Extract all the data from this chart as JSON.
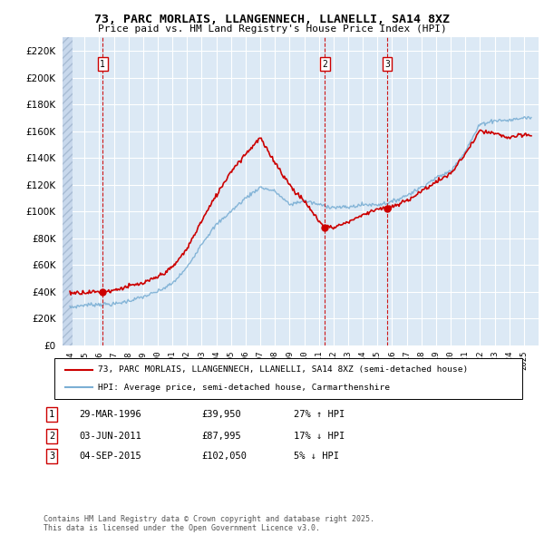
{
  "title": "73, PARC MORLAIS, LLANGENNECH, LLANELLI, SA14 8XZ",
  "subtitle": "Price paid vs. HM Land Registry's House Price Index (HPI)",
  "ylim": [
    0,
    230000
  ],
  "yticks": [
    0,
    20000,
    40000,
    60000,
    80000,
    100000,
    120000,
    140000,
    160000,
    180000,
    200000,
    220000
  ],
  "plot_bg_color": "#dce9f5",
  "sale_markers": [
    {
      "date_num": 1996.24,
      "price": 39950,
      "label": "1"
    },
    {
      "date_num": 2011.42,
      "price": 87995,
      "label": "2"
    },
    {
      "date_num": 2015.67,
      "price": 102050,
      "label": "3"
    }
  ],
  "vline_color": "#cc0000",
  "legend_entry1": "73, PARC MORLAIS, LLANGENNECH, LLANELLI, SA14 8XZ (semi-detached house)",
  "legend_entry2": "HPI: Average price, semi-detached house, Carmarthenshire",
  "table_rows": [
    {
      "num": "1",
      "date": "29-MAR-1996",
      "price": "£39,950",
      "pct": "27% ↑ HPI"
    },
    {
      "num": "2",
      "date": "03-JUN-2011",
      "price": "£87,995",
      "pct": "17% ↓ HPI"
    },
    {
      "num": "3",
      "date": "04-SEP-2015",
      "price": "£102,050",
      "pct": "5% ↓ HPI"
    }
  ],
  "footer": "Contains HM Land Registry data © Crown copyright and database right 2025.\nThis data is licensed under the Open Government Licence v3.0.",
  "red_line_color": "#cc0000",
  "blue_line_color": "#7bafd4",
  "marker_box_color": "#cc0000",
  "hpi_keypoints": [
    [
      1994.0,
      28000
    ],
    [
      1995.0,
      30000
    ],
    [
      1996.0,
      30500
    ],
    [
      1997.0,
      30500
    ],
    [
      1998.0,
      33000
    ],
    [
      1999.0,
      36000
    ],
    [
      2000.0,
      40000
    ],
    [
      2001.0,
      46000
    ],
    [
      2002.0,
      58000
    ],
    [
      2003.0,
      76000
    ],
    [
      2004.0,
      90000
    ],
    [
      2005.0,
      100000
    ],
    [
      2006.0,
      110000
    ],
    [
      2007.0,
      118000
    ],
    [
      2008.0,
      115000
    ],
    [
      2009.0,
      105000
    ],
    [
      2010.0,
      108000
    ],
    [
      2011.0,
      105000
    ],
    [
      2012.0,
      103000
    ],
    [
      2013.0,
      103000
    ],
    [
      2014.0,
      105000
    ],
    [
      2015.0,
      105000
    ],
    [
      2016.0,
      107000
    ],
    [
      2017.0,
      112000
    ],
    [
      2018.0,
      118000
    ],
    [
      2019.0,
      125000
    ],
    [
      2020.0,
      130000
    ],
    [
      2021.0,
      145000
    ],
    [
      2022.0,
      165000
    ],
    [
      2023.0,
      168000
    ],
    [
      2024.0,
      168000
    ],
    [
      2025.0,
      170000
    ]
  ],
  "pp_keypoints": [
    [
      1994.0,
      39000
    ],
    [
      1995.0,
      39500
    ],
    [
      1996.0,
      39800
    ],
    [
      1996.24,
      39950
    ],
    [
      1997.0,
      41000
    ],
    [
      1998.0,
      44000
    ],
    [
      1999.0,
      46000
    ],
    [
      2000.0,
      51000
    ],
    [
      2001.0,
      58000
    ],
    [
      2002.0,
      72000
    ],
    [
      2003.0,
      93000
    ],
    [
      2004.0,
      112000
    ],
    [
      2005.0,
      130000
    ],
    [
      2006.0,
      143000
    ],
    [
      2007.0,
      155000
    ],
    [
      2007.5,
      145000
    ],
    [
      2008.0,
      137000
    ],
    [
      2008.5,
      128000
    ],
    [
      2009.0,
      120000
    ],
    [
      2009.5,
      113000
    ],
    [
      2010.0,
      108000
    ],
    [
      2010.5,
      100000
    ],
    [
      2011.0,
      93000
    ],
    [
      2011.42,
      87995
    ],
    [
      2011.5,
      89000
    ],
    [
      2012.0,
      88000
    ],
    [
      2012.5,
      90000
    ],
    [
      2013.0,
      92000
    ],
    [
      2013.5,
      95000
    ],
    [
      2014.0,
      97000
    ],
    [
      2014.5,
      100000
    ],
    [
      2015.0,
      102000
    ],
    [
      2015.67,
      102050
    ],
    [
      2016.0,
      103000
    ],
    [
      2017.0,
      108000
    ],
    [
      2018.0,
      115000
    ],
    [
      2019.0,
      122000
    ],
    [
      2020.0,
      128000
    ],
    [
      2021.0,
      143000
    ],
    [
      2022.0,
      160000
    ],
    [
      2023.0,
      158000
    ],
    [
      2024.0,
      155000
    ],
    [
      2025.0,
      157000
    ]
  ]
}
